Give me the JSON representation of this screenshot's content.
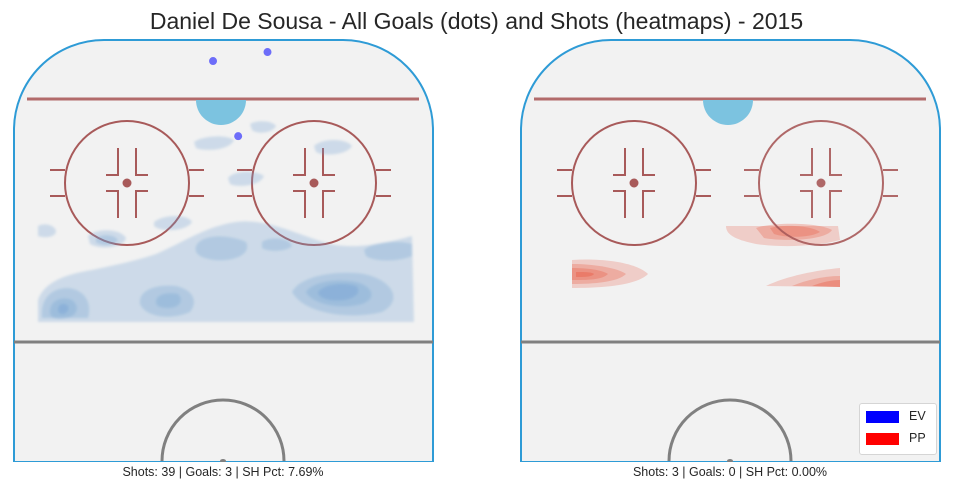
{
  "chart_data": {
    "type": "heatmap",
    "title": "Daniel De Sousa - All Goals (dots) and Shots (heatmaps) - 2015",
    "panels": [
      {
        "name": "EV",
        "caption": "Shots: 39 | Goals: 3 | SH Pct: 7.69%",
        "shots": 39,
        "goals": 3,
        "sh_pct": 7.69,
        "color": "#0000ff",
        "goal_dots": [
          {
            "x": 60.5,
            "y": 96.5
          },
          {
            "x": 47.5,
            "y": 93.5
          },
          {
            "x": 53.5,
            "y": 68.5
          }
        ]
      },
      {
        "name": "PP",
        "caption": "Shots: 3 | Goals: 0 | SH Pct: 0.00%",
        "shots": 3,
        "goals": 0,
        "sh_pct": 0.0,
        "color": "#ff0000",
        "goal_dots": []
      }
    ],
    "legend": {
      "placement": "lower-right",
      "entries": [
        {
          "label": "EV",
          "color": "#0000ff"
        },
        {
          "label": "PP",
          "color": "#ff0000"
        }
      ]
    },
    "colors": {
      "ev_fill": "#6a9fd1",
      "pp_fill": "#e8604a",
      "boards": "#2e9bd6",
      "goal_line": "#b26b6b",
      "center_line": "#808080",
      "faceoff": "#a85a5a",
      "crease": "#7cc3e0",
      "ice": "#f2f2f2"
    }
  }
}
